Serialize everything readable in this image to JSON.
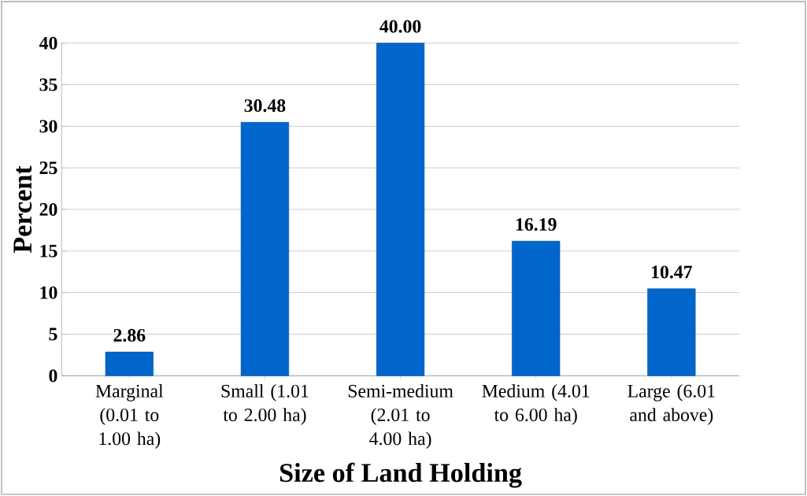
{
  "chart_data": {
    "type": "bar",
    "xlabel": "Size of Land Holding",
    "ylabel": "Percent",
    "categories": [
      "Marginal (0.01 to 1.00 ha)",
      "Small (1.01 to 2.00 ha)",
      "Semi-medium (2.01 to 4.00 ha)",
      "Medium (4.01 to 6.00 ha)",
      "Large (6.01 and above)"
    ],
    "values": [
      2.86,
      30.48,
      40.0,
      16.19,
      10.47
    ],
    "value_labels": [
      "2.86",
      "30.48",
      "40.00",
      "16.19",
      "10.47"
    ],
    "color": "#0066cc",
    "ylim": [
      0,
      40
    ],
    "yticks": [
      0,
      5,
      10,
      15,
      20,
      25,
      30,
      35,
      40
    ],
    "grid": "y"
  }
}
